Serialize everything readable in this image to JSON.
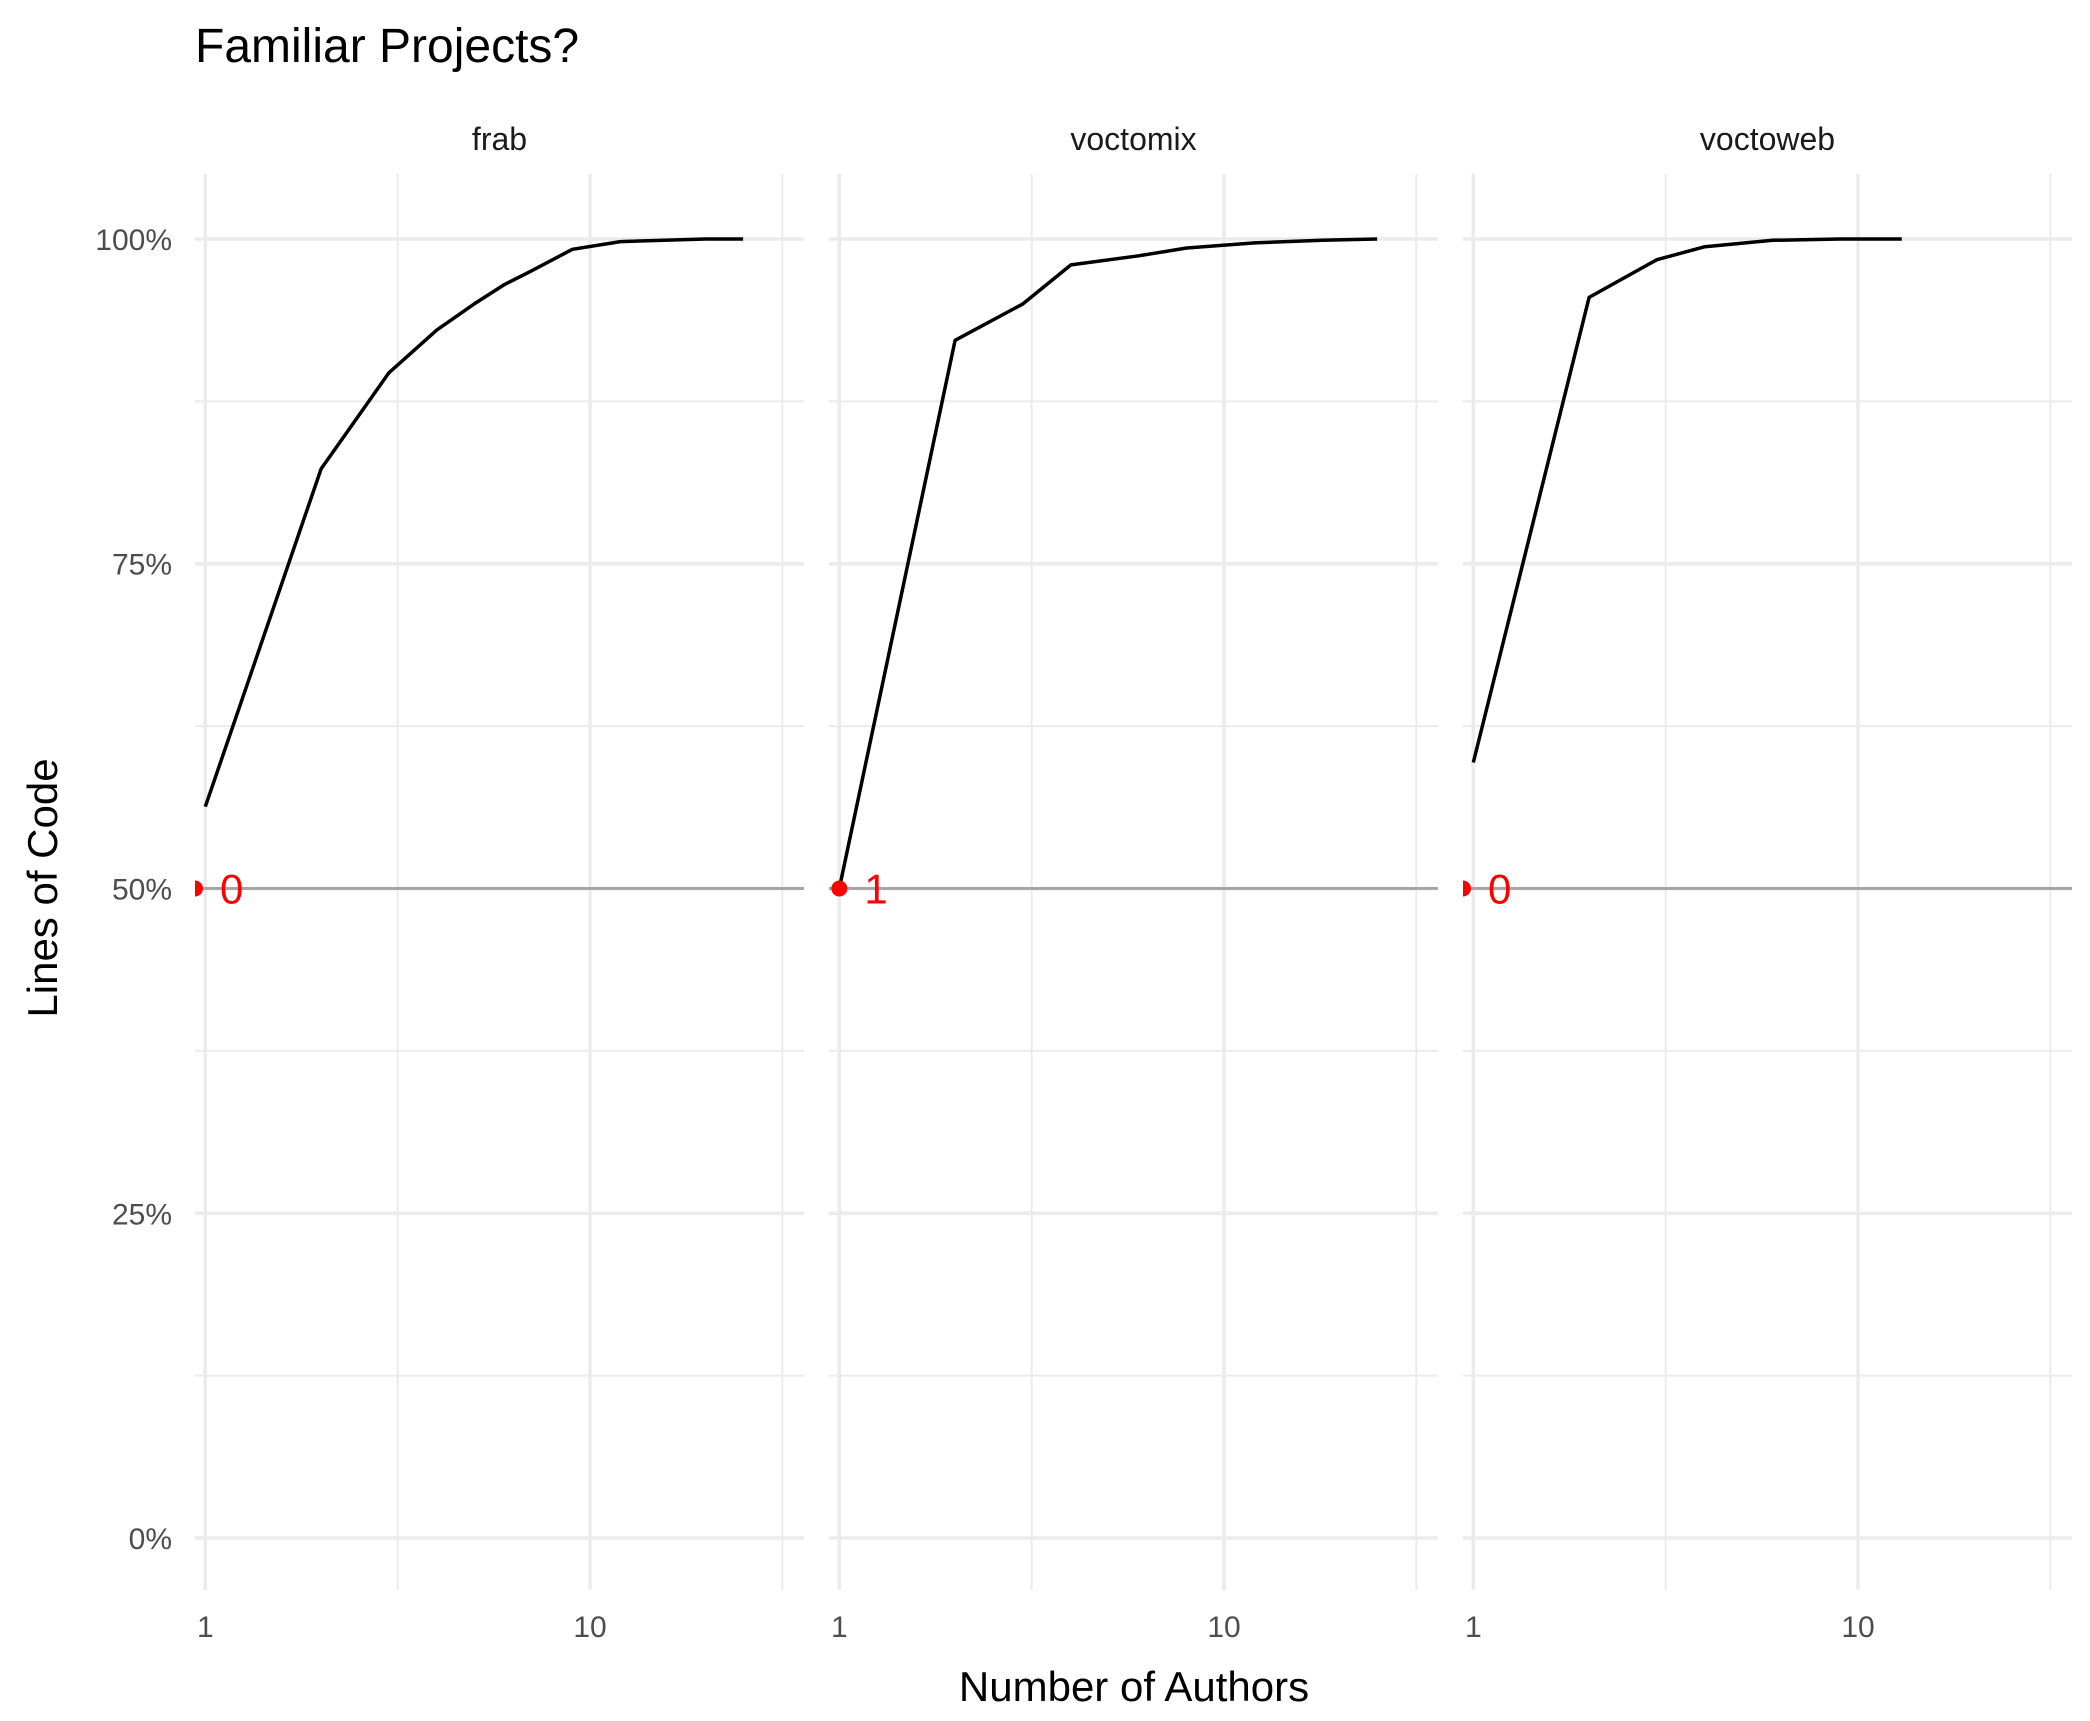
{
  "chart_data": {
    "type": "line",
    "title": "Familiar Projects?",
    "xlabel": "Number of Authors",
    "ylabel": "Lines of Code",
    "x_scale": "log10",
    "xlim": [
      0.94,
      36
    ],
    "ylim": [
      -0.04,
      1.05
    ],
    "x_ticks": [
      1,
      10
    ],
    "x_tick_labels": [
      "1",
      "10"
    ],
    "y_ticks": [
      0,
      0.25,
      0.5,
      0.75,
      1.0
    ],
    "y_tick_labels": [
      "0%",
      "25%",
      "50%",
      "75%",
      "100%"
    ],
    "reference_line_y": 0.5,
    "grid": true,
    "colors": {
      "line": "#000000",
      "reference": "#a6a6a6",
      "marker": "#ff0000",
      "grid": "#ebebeb"
    },
    "facets": [
      {
        "name": "frab",
        "x": [
          1,
          2,
          3,
          4,
          5,
          6,
          7,
          9,
          12,
          20,
          25
        ],
        "y": [
          0.563,
          0.823,
          0.897,
          0.93,
          0.95,
          0.965,
          0.975,
          0.992,
          0.998,
          1.0,
          1.0
        ],
        "marker_x": 0.94,
        "annotation": "0"
      },
      {
        "name": "voctomix",
        "x": [
          1,
          2,
          3,
          4,
          6,
          8,
          12,
          18,
          25
        ],
        "y": [
          0.5,
          0.922,
          0.95,
          0.98,
          0.987,
          0.993,
          0.997,
          0.999,
          1.0
        ],
        "marker_x": 1,
        "annotation": "1"
      },
      {
        "name": "voctoweb",
        "x": [
          1,
          2,
          3,
          4,
          6,
          9,
          13
        ],
        "y": [
          0.597,
          0.955,
          0.984,
          0.994,
          0.999,
          1.0,
          1.0
        ],
        "marker_x": 0.94,
        "annotation": "0"
      }
    ]
  }
}
